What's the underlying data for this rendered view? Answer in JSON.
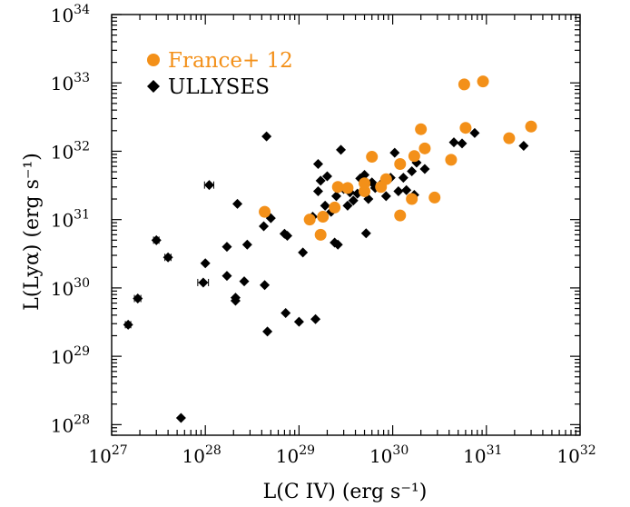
{
  "chart_data": {
    "type": "scatter",
    "xlabel": "L(C IV) (erg s⁻¹)",
    "ylabel": "L(Lyα) (erg s⁻¹)",
    "x_scale": "log",
    "y_scale": "log",
    "xlim": [
      1e+27,
      1e+32
    ],
    "ylim": [
      7e+27,
      1e+34
    ],
    "x_ticks": [
      {
        "value": 1e+27,
        "base": "10",
        "exp": "27"
      },
      {
        "value": 1e+28,
        "base": "10",
        "exp": "28"
      },
      {
        "value": 1e+29,
        "base": "10",
        "exp": "29"
      },
      {
        "value": 1e+30,
        "base": "10",
        "exp": "30"
      },
      {
        "value": 1e+31,
        "base": "10",
        "exp": "31"
      },
      {
        "value": 1e+32,
        "base": "10",
        "exp": "32"
      }
    ],
    "y_ticks": [
      {
        "value": 1e+28,
        "base": "10",
        "exp": "28"
      },
      {
        "value": 1e+29,
        "base": "10",
        "exp": "29"
      },
      {
        "value": 1e+30,
        "base": "10",
        "exp": "30"
      },
      {
        "value": 1e+31,
        "base": "10",
        "exp": "31"
      },
      {
        "value": 1e+32,
        "base": "10",
        "exp": "32"
      },
      {
        "value": 1e+33,
        "base": "10",
        "exp": "33"
      },
      {
        "value": 1e+34,
        "base": "10",
        "exp": "34"
      }
    ],
    "grid": false,
    "legend_position": "top-left",
    "series": [
      {
        "name": "France+ 12",
        "marker": "circle",
        "color": "#F39019",
        "points": [
          [
            4.3e+28,
            1.3e+31
          ],
          [
            1.3e+29,
            1e+31
          ],
          [
            1.7e+29,
            6e+30
          ],
          [
            1.8e+29,
            1.1e+31
          ],
          [
            2.4e+29,
            1.5e+31
          ],
          [
            2.6e+29,
            3e+31
          ],
          [
            3.3e+29,
            2.9e+31
          ],
          [
            5e+29,
            2.6e+31
          ],
          [
            5e+29,
            3.4e+31
          ],
          [
            6e+29,
            8.3e+31
          ],
          [
            7.5e+29,
            3e+31
          ],
          [
            8.5e+29,
            3.9e+31
          ],
          [
            1.2e+30,
            1.15e+31
          ],
          [
            1.2e+30,
            6.5e+31
          ],
          [
            1.6e+30,
            2e+31
          ],
          [
            1.7e+30,
            8.5e+31
          ],
          [
            2e+30,
            2.1e+32
          ],
          [
            2.2e+30,
            1.1e+32
          ],
          [
            2.8e+30,
            2.1e+31
          ],
          [
            4.2e+30,
            7.5e+31
          ],
          [
            5.8e+30,
            9.5e+32
          ],
          [
            6e+30,
            2.2e+32
          ],
          [
            9.2e+30,
            1.05e+33
          ],
          [
            1.75e+31,
            1.55e+32
          ],
          [
            3e+31,
            2.3e+32
          ]
        ]
      },
      {
        "name": "ULLYSES",
        "marker": "diamond",
        "color": "#000000",
        "points": [
          [
            1.5e+27,
            2.9e+29
          ],
          [
            1.9e+27,
            7e+29
          ],
          [
            3e+27,
            5e+30
          ],
          [
            4e+27,
            2.8e+30
          ],
          [
            5.5e+27,
            1.25e+28
          ],
          [
            9.5e+27,
            1.2e+30
          ],
          [
            1e+28,
            2.3e+30
          ],
          [
            1.1e+28,
            3.2e+31
          ],
          [
            1.7e+28,
            4e+30
          ],
          [
            1.7e+28,
            1.5e+30
          ],
          [
            2.1e+28,
            6.5e+29
          ],
          [
            2.1e+28,
            7.2e+29
          ],
          [
            2.2e+28,
            1.7e+31
          ],
          [
            2.6e+28,
            1.25e+30
          ],
          [
            2.8e+28,
            4.3e+30
          ],
          [
            4.2e+28,
            8e+30
          ],
          [
            4.3e+28,
            1.1e+30
          ],
          [
            4.5e+28,
            1.65e+32
          ],
          [
            4.6e+28,
            2.3e+29
          ],
          [
            5e+28,
            1.05e+31
          ],
          [
            7e+28,
            6.2e+30
          ],
          [
            7.5e+28,
            5.8e+30
          ],
          [
            7.2e+28,
            4.3e+29
          ],
          [
            1e+29,
            3.2e+29
          ],
          [
            1.1e+29,
            3.3e+30
          ],
          [
            1.5e+29,
            3.5e+29
          ],
          [
            1.4e+29,
            1.1e+31
          ],
          [
            1.6e+29,
            2.6e+31
          ],
          [
            1.6e+29,
            6.5e+31
          ],
          [
            1.7e+29,
            3.7e+31
          ],
          [
            1.9e+29,
            1.6e+31
          ],
          [
            2e+29,
            4.3e+31
          ],
          [
            2.2e+29,
            1.3e+31
          ],
          [
            2.4e+29,
            4.6e+30
          ],
          [
            2.5e+29,
            2.2e+31
          ],
          [
            2.6e+29,
            4.3e+30
          ],
          [
            2.8e+29,
            1.05e+32
          ],
          [
            3e+29,
            2.8e+31
          ],
          [
            3.3e+29,
            1.6e+31
          ],
          [
            3.5e+29,
            2.5e+31
          ],
          [
            3.8e+29,
            1.9e+31
          ],
          [
            4.2e+29,
            2.4e+31
          ],
          [
            4.5e+29,
            4e+31
          ],
          [
            5e+29,
            4.5e+31
          ],
          [
            5.2e+29,
            6.3e+30
          ],
          [
            5.5e+29,
            2e+31
          ],
          [
            6e+29,
            3.5e+31
          ],
          [
            6.5e+29,
            2.9e+31
          ],
          [
            7.5e+29,
            3.3e+31
          ],
          [
            8.5e+29,
            2.2e+31
          ],
          [
            9.5e+29,
            4.1e+31
          ],
          [
            1.05e+30,
            9.5e+31
          ],
          [
            1.15e+30,
            2.6e+31
          ],
          [
            1.3e+30,
            4.1e+31
          ],
          [
            1.4e+30,
            2.7e+31
          ],
          [
            1.6e+30,
            5.1e+31
          ],
          [
            1.7e+30,
            2.3e+31
          ],
          [
            1.8e+30,
            6.8e+31
          ],
          [
            2.2e+30,
            5.5e+31
          ],
          [
            4.5e+30,
            1.35e+32
          ],
          [
            5.5e+30,
            1.3e+32
          ],
          [
            7.5e+30,
            1.85e+32
          ],
          [
            2.5e+31,
            1.2e+32
          ]
        ],
        "x_errorbars": [
          {
            "point": [
              1.1e+28,
              3.2e+31
            ],
            "xerr": [
              9.8e+27,
              1.23e+28
            ]
          },
          {
            "point": [
              9.5e+27,
              1.2e+30
            ],
            "xerr": [
              8.3e+27,
              1.08e+28
            ]
          },
          {
            "point": [
              3e+27,
              5e+30
            ],
            "xerr": [
              2.8e+27,
              3.2e+27
            ]
          },
          {
            "point": [
              4e+27,
              2.8e+30
            ],
            "xerr": [
              3.7e+27,
              4.3e+27
            ]
          },
          {
            "point": [
              1.9e+27,
              7e+29
            ],
            "xerr": [
              1.75e+27,
              2.05e+27
            ]
          },
          {
            "point": [
              1.5e+27,
              2.9e+29
            ],
            "xerr": [
              1.4e+27,
              1.6e+27
            ]
          }
        ]
      }
    ]
  }
}
